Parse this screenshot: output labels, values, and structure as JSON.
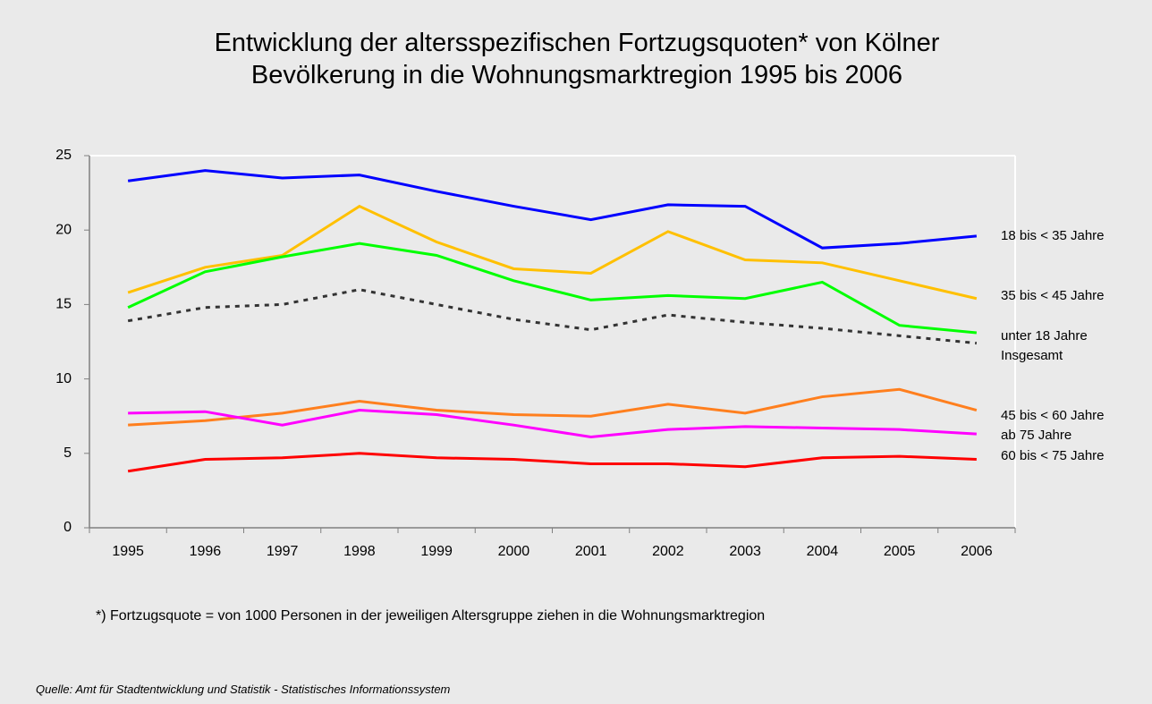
{
  "chart_data": {
    "type": "line",
    "title": "Entwicklung der altersspezifischen Fortzugsquoten* von Kölner Bevölkerung in die Wohnungsmarktregion 1995 bis 2006",
    "categories": [
      "1995",
      "1996",
      "1997",
      "1998",
      "1999",
      "2000",
      "2001",
      "2002",
      "2003",
      "2004",
      "2005",
      "2006"
    ],
    "series": [
      {
        "name": "18 bis < 35 Jahre",
        "color": "#0000ff",
        "values": [
          23.3,
          24.0,
          23.5,
          23.7,
          22.6,
          21.6,
          20.7,
          21.7,
          21.6,
          18.8,
          19.1,
          19.6
        ]
      },
      {
        "name": "35 bis < 45 Jahre",
        "color": "#ffc000",
        "values": [
          15.8,
          17.5,
          18.3,
          21.6,
          19.2,
          17.4,
          17.1,
          19.9,
          18.0,
          17.8,
          16.6,
          15.4
        ]
      },
      {
        "name": "unter 18 Jahre",
        "color": "#00ff00",
        "values": [
          14.8,
          17.2,
          18.2,
          19.1,
          18.3,
          16.6,
          15.3,
          15.6,
          15.4,
          16.5,
          13.6,
          13.1
        ]
      },
      {
        "name": "Insgesamt",
        "color": "#333333",
        "dashed": true,
        "values": [
          13.9,
          14.8,
          15.0,
          16.0,
          15.0,
          14.0,
          13.3,
          14.3,
          13.8,
          13.4,
          12.9,
          12.4
        ]
      },
      {
        "name": "45 bis < 60 Jahre",
        "color": "#ff7f1e",
        "values": [
          6.9,
          7.2,
          7.7,
          8.5,
          7.9,
          7.6,
          7.5,
          8.3,
          7.7,
          8.8,
          9.3,
          7.9
        ]
      },
      {
        "name": "ab 75 Jahre",
        "color": "#ff00ff",
        "values": [
          7.7,
          7.8,
          6.9,
          7.9,
          7.6,
          6.9,
          6.1,
          6.6,
          6.8,
          6.7,
          6.6,
          6.3
        ]
      },
      {
        "name": "60 bis < 75 Jahre",
        "color": "#ff0000",
        "values": [
          3.8,
          4.6,
          4.7,
          5.0,
          4.7,
          4.6,
          4.3,
          4.3,
          4.1,
          4.7,
          4.8,
          4.6
        ]
      }
    ],
    "ylim": [
      0,
      25
    ],
    "yticks": [
      0,
      5,
      10,
      15,
      20,
      25
    ],
    "grid": false,
    "note": "*) Fortzugsquote = von 1000 Personen in der jeweiligen Altersgruppe ziehen in die Wohnungsmarktregion",
    "source": "Quelle: Amt für Stadtentwicklung und Statistik - Statistisches Informationssystem"
  }
}
